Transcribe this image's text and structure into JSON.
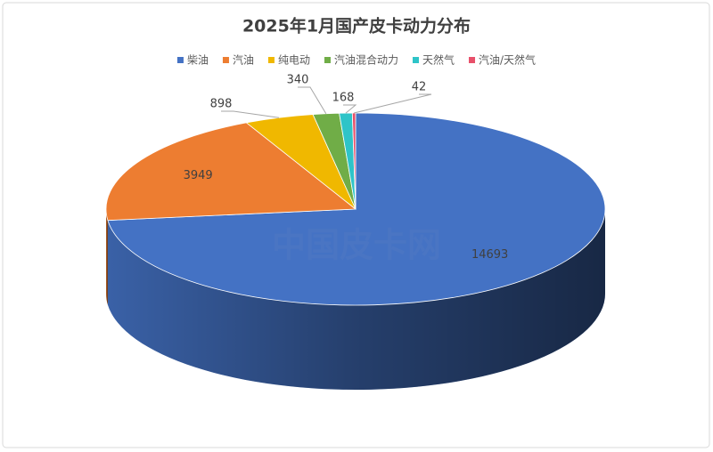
{
  "chart_data": {
    "type": "pie3d",
    "title": "2025年1月国产皮卡动力分布",
    "watermark": "中国皮卡网",
    "categories": [
      "柴油",
      "汽油",
      "纯电动",
      "汽油混合动力",
      "天然气",
      "汽油/天然气"
    ],
    "values": [
      14693,
      3949,
      898,
      340,
      168,
      42
    ],
    "colors": [
      "#4472c4",
      "#ed7d31",
      "#f0b800",
      "#70ad47",
      "#2ec4c8",
      "#e8506a"
    ],
    "legend": "top"
  }
}
